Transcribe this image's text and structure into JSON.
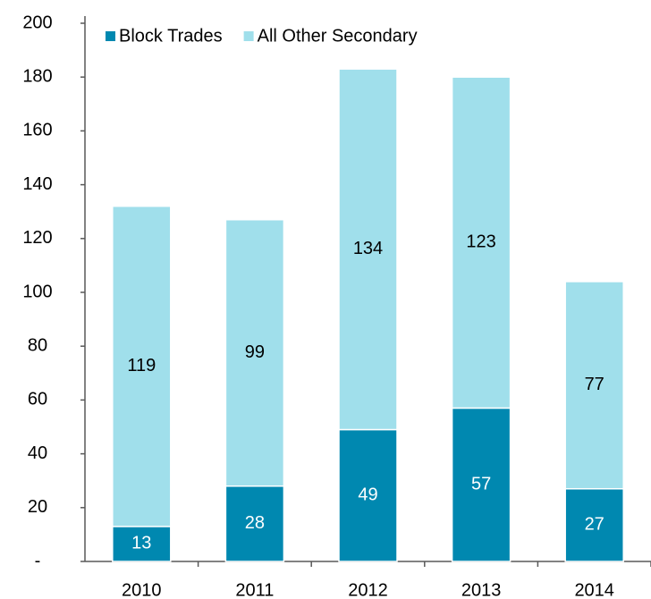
{
  "chart_data": {
    "type": "stacked_bar",
    "categories": [
      "2010",
      "2011",
      "2012",
      "2013",
      "2014"
    ],
    "series": [
      {
        "name": "Block Trades",
        "color": "#0088b0",
        "label_color": "#ffffff",
        "values": [
          13,
          28,
          49,
          57,
          27
        ]
      },
      {
        "name": "All Other Secondary",
        "color": "#a0dfeb",
        "label_color": "#000000",
        "values": [
          119,
          99,
          134,
          123,
          77
        ]
      }
    ],
    "ylim": [
      0,
      200
    ],
    "yticks": [
      {
        "value": 0,
        "label": "-"
      },
      20,
      40,
      60,
      80,
      100,
      120,
      140,
      160,
      180,
      200
    ],
    "grid": false,
    "legend": "top"
  }
}
